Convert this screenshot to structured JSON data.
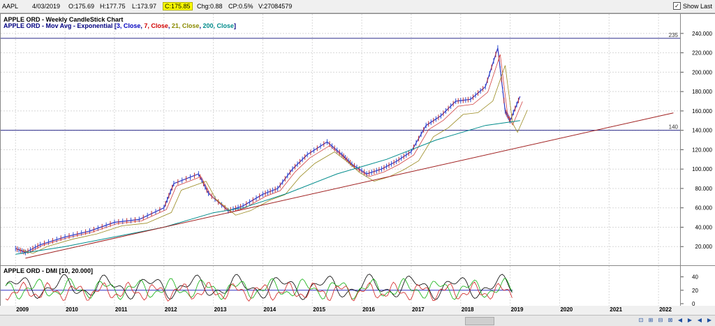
{
  "header": {
    "symbol": "AAPL",
    "date": "4/03/2019",
    "open": "O:175.69",
    "high": "H:177.75",
    "low": "L:173.97",
    "close": "C:175.85",
    "change": "Chg:0.88",
    "change_pct": "CP:0.5%",
    "volume": "V:27084579",
    "show_last_label": "Show Last",
    "show_last_checked": "✓"
  },
  "chart": {
    "title": "APPLE ORD - Weekly CandleStick Chart",
    "ma_prefix": "APPLE ORD - Mov Avg - Exponential [",
    "ma_p1": "3, Close",
    "ma_p2": "7, Close",
    "ma_p3": "21, Close",
    "ma_p4": "200, Close",
    "ma_suffix": "]",
    "hline_labels": [
      "235",
      "140"
    ]
  },
  "dmi": {
    "title": "APPLE ORD - DMI [10, 20.000]",
    "y_ticks": [
      "40",
      "20",
      "0"
    ]
  },
  "chart_data": {
    "type": "line",
    "y_ticks": [
      "240.000",
      "220.000",
      "200.000",
      "180.000",
      "160.000",
      "140.000",
      "120.000",
      "100.000",
      "80.000",
      "60.000",
      "40.000",
      "20.000"
    ],
    "ylim": [
      0,
      250
    ],
    "x_ticks": [
      "2009",
      "2010",
      "2011",
      "2012",
      "2013",
      "2014",
      "2015",
      "2016",
      "2017",
      "2018",
      "2019",
      "2020",
      "2021",
      "2022"
    ],
    "horizontal_lines": [
      235,
      140
    ],
    "series": [
      {
        "values": [
          [
            2009.0,
            18
          ],
          [
            2009.2,
            14
          ],
          [
            2009.5,
            22
          ],
          [
            2010.0,
            30
          ],
          [
            2010.5,
            36
          ],
          [
            2011.0,
            45
          ],
          [
            2011.5,
            48
          ],
          [
            2012.0,
            60
          ],
          [
            2012.2,
            85
          ],
          [
            2012.7,
            95
          ],
          [
            2012.9,
            75
          ],
          [
            2013.3,
            57
          ],
          [
            2013.6,
            62
          ],
          [
            2014.0,
            74
          ],
          [
            2014.3,
            80
          ],
          [
            2014.6,
            100
          ],
          [
            2014.9,
            115
          ],
          [
            2015.3,
            128
          ],
          [
            2015.6,
            115
          ],
          [
            2015.8,
            105
          ],
          [
            2016.1,
            95
          ],
          [
            2016.4,
            100
          ],
          [
            2016.7,
            108
          ],
          [
            2017.0,
            118
          ],
          [
            2017.3,
            145
          ],
          [
            2017.6,
            155
          ],
          [
            2017.9,
            170
          ],
          [
            2018.2,
            172
          ],
          [
            2018.5,
            185
          ],
          [
            2018.75,
            225
          ],
          [
            2018.9,
            160
          ],
          [
            2019.0,
            150
          ],
          [
            2019.2,
            175
          ]
        ]
      },
      {
        "values": [
          [
            2009.0,
            12
          ],
          [
            2010.0,
            20
          ],
          [
            2011.0,
            30
          ],
          [
            2012.0,
            40
          ],
          [
            2013.0,
            55
          ],
          [
            2013.6,
            60
          ],
          [
            2014.5,
            75
          ],
          [
            2015.5,
            95
          ],
          [
            2016.5,
            110
          ],
          [
            2017.5,
            130
          ],
          [
            2018.5,
            145
          ],
          [
            2019.2,
            150
          ]
        ]
      },
      {
        "values": [
          [
            2009.2,
            8
          ],
          [
            2022.3,
            158
          ]
        ]
      }
    ]
  },
  "scrollbar": {
    "controls": [
      "⊡",
      "⊞",
      "⊟",
      "⊠",
      "◀",
      "▶",
      "◀",
      "▶"
    ]
  }
}
